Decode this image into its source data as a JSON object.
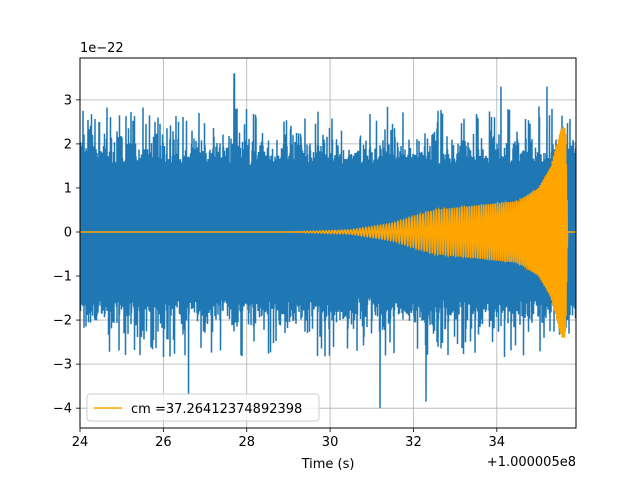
{
  "chart_data": {
    "type": "line",
    "xlabel": "Time (s)",
    "ylabel": "",
    "x_offset_label": "+1.000005e8",
    "y_scale_label": "1e−22",
    "x_tick_labels": [
      "24",
      "26",
      "28",
      "30",
      "32",
      "34"
    ],
    "y_tick_labels": [
      "−4",
      "−3",
      "−2",
      "−1",
      "0",
      "1",
      "2",
      "3"
    ],
    "x_ticks": [
      24,
      26,
      28,
      30,
      32,
      34
    ],
    "y_ticks": [
      -4,
      -3,
      -2,
      -1,
      0,
      1,
      2,
      3
    ],
    "xlim": [
      24.0,
      35.9
    ],
    "ylim": [
      -4.45,
      3.95
    ],
    "grid": true,
    "legend_position": "lower-left",
    "series": [
      {
        "label": "",
        "color": "#1f77b4",
        "kind": "noise",
        "t_start": 24.0,
        "t_end": 35.9,
        "envelope_typical": 1.9,
        "notable_extremes": [
          {
            "x": 27.7,
            "y": 3.6
          },
          {
            "x": 26.6,
            "y": -3.7
          },
          {
            "x": 31.2,
            "y": -4.0
          },
          {
            "x": 32.3,
            "y": -3.85
          },
          {
            "x": 34.1,
            "y": 3.3
          },
          {
            "x": 35.2,
            "y": 3.3
          }
        ]
      },
      {
        "label": "cm =37.26412374892398",
        "color": "#ffa500",
        "kind": "chirp",
        "t_start": 24.0,
        "t_end": 35.9,
        "amplitude_profile": [
          {
            "x": 24.0,
            "y": 0.0
          },
          {
            "x": 29.0,
            "y": 0.0
          },
          {
            "x": 30.5,
            "y": 0.05
          },
          {
            "x": 31.5,
            "y": 0.2
          },
          {
            "x": 32.5,
            "y": 0.5
          },
          {
            "x": 33.5,
            "y": 0.6
          },
          {
            "x": 34.5,
            "y": 0.7
          },
          {
            "x": 35.0,
            "y": 1.0
          },
          {
            "x": 35.3,
            "y": 1.5
          },
          {
            "x": 35.55,
            "y": 2.4
          },
          {
            "x": 35.65,
            "y": 2.4
          },
          {
            "x": 35.7,
            "y": 0.0
          },
          {
            "x": 35.9,
            "y": 0.0
          }
        ]
      }
    ]
  }
}
